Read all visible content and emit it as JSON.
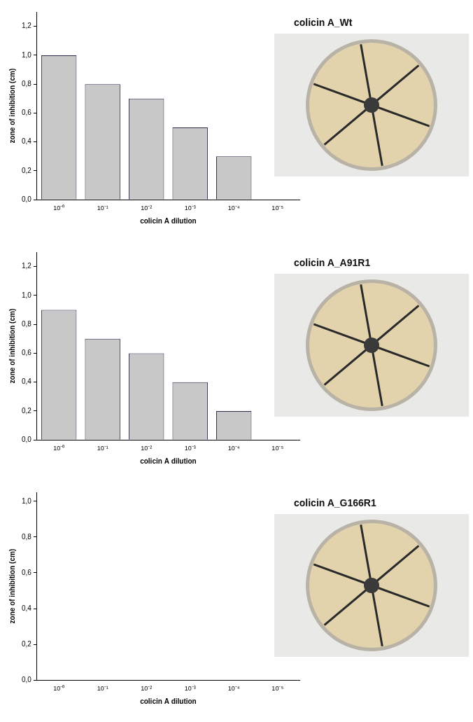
{
  "chart_data": [
    {
      "type": "bar",
      "title": "colicin A_Wt",
      "x_label": "colicin A dilution",
      "y_label": "zone of inhibition (cm)",
      "categories": [
        "10⁻⁰",
        "10⁻¹",
        "10⁻²",
        "10⁻³",
        "10⁻⁴",
        "10⁻⁵"
      ],
      "values": [
        1.0,
        0.8,
        0.7,
        0.5,
        0.3,
        0
      ],
      "color": "#c8c8c8",
      "grid": false,
      "ylim": [
        0,
        1.3
      ],
      "yticks": [
        {
          "value": 0,
          "label": "0,0"
        },
        {
          "value": 0.2,
          "label": "0,2"
        },
        {
          "value": 0.4,
          "label": "0,4"
        },
        {
          "value": 0.6,
          "label": "0,6"
        },
        {
          "value": 0.8,
          "label": "0,8"
        },
        {
          "value": 1.0,
          "label": "1,0"
        },
        {
          "value": 1.2,
          "label": "1,2"
        }
      ]
    },
    {
      "type": "bar",
      "title": "colicin A_A91R1",
      "x_label": "colicin A dilution",
      "y_label": "zone of inhibition (cm)",
      "categories": [
        "10⁻⁰",
        "10⁻¹",
        "10⁻²",
        "10⁻³",
        "10⁻⁴",
        "10⁻⁵"
      ],
      "values": [
        0.9,
        0.7,
        0.6,
        0.4,
        0.2,
        0
      ],
      "color": "#c8c8c8",
      "grid": false,
      "ylim": [
        0,
        1.3
      ],
      "yticks": [
        {
          "value": 0,
          "label": "0,0"
        },
        {
          "value": 0.2,
          "label": "0,2"
        },
        {
          "value": 0.4,
          "label": "0,4"
        },
        {
          "value": 0.6,
          "label": "0,6"
        },
        {
          "value": 0.8,
          "label": "0,8"
        },
        {
          "value": 1.0,
          "label": "1,0"
        },
        {
          "value": 1.2,
          "label": "1,2"
        }
      ]
    },
    {
      "type": "bar",
      "title": "colicin A_G166R1",
      "x_label": "colicin A dilution",
      "y_label": "zone of inhibition (cm)",
      "categories": [
        "10⁻⁰",
        "10⁻¹",
        "10⁻²",
        "10⁻³",
        "10⁻⁴",
        "10⁻⁵"
      ],
      "values": [
        0,
        0,
        0,
        0,
        0,
        0
      ],
      "color": "#c8c8c8",
      "grid": false,
      "ylim": [
        0,
        1.05
      ],
      "yticks": [
        {
          "value": 0,
          "label": "0,0"
        },
        {
          "value": 0.2,
          "label": "0,2"
        },
        {
          "value": 0.4,
          "label": "0,4"
        },
        {
          "value": 0.6,
          "label": "0,6"
        },
        {
          "value": 0.8,
          "label": "0,8"
        },
        {
          "value": 1.0,
          "label": "1,0"
        }
      ]
    }
  ]
}
